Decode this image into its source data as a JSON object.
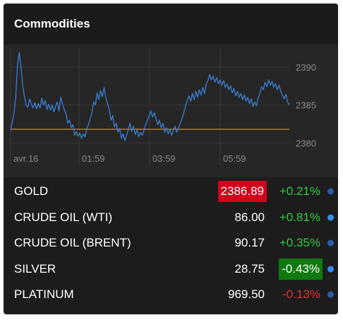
{
  "widget": {
    "title": "Commodities"
  },
  "chart_data": {
    "type": "line",
    "x_labels": [
      "avr.16",
      "01:59",
      "03:59",
      "05:59"
    ],
    "y_ticks": [
      2380,
      2385,
      2390
    ],
    "ylim": [
      2379.2,
      2392.4
    ],
    "baseline": 2381.8,
    "grid": true,
    "colors": {
      "line": "#3b7fd6",
      "baseline": "#b07a2b",
      "grid": "#3a3a3a",
      "axis_text": "#8a8a8a"
    },
    "y": [
      2381.6,
      2382.8,
      2384.0,
      2386.2,
      2390.3,
      2391.9,
      2390.0,
      2387.5,
      2386.1,
      2385.0,
      2384.7,
      2385.8,
      2385.1,
      2384.6,
      2385.3,
      2384.5,
      2385.2,
      2384.6,
      2385.9,
      2385.0,
      2385.6,
      2384.4,
      2385.1,
      2384.3,
      2385.0,
      2384.1,
      2384.8,
      2385.4,
      2384.2,
      2386.0,
      2385.1,
      2384.4,
      2383.8,
      2382.6,
      2383.0,
      2382.0,
      2382.4,
      2381.0,
      2381.5,
      2380.9,
      2381.3,
      2380.6,
      2381.2,
      2380.8,
      2381.9,
      2382.4,
      2383.2,
      2384.0,
      2385.4,
      2385.0,
      2386.6,
      2385.7,
      2386.9,
      2386.1,
      2387.3,
      2386.0,
      2385.2,
      2384.4,
      2383.0,
      2383.6,
      2382.1,
      2382.6,
      2381.4,
      2381.9,
      2380.6,
      2381.2,
      2380.3,
      2381.0,
      2381.8,
      2382.6,
      2381.5,
      2382.2,
      2381.1,
      2381.7,
      2380.8,
      2381.4,
      2381.0,
      2381.6,
      2382.4,
      2383.0,
      2383.6,
      2384.2,
      2383.4,
      2384.0,
      2383.2,
      2382.4,
      2383.0,
      2382.0,
      2382.6,
      2381.4,
      2382.0,
      2381.2,
      2381.8,
      2381.0,
      2381.6,
      2382.2,
      2381.4,
      2382.0,
      2382.6,
      2383.2,
      2384.0,
      2384.8,
      2385.6,
      2386.2,
      2385.5,
      2386.5,
      2385.7,
      2386.8,
      2386.0,
      2387.0,
      2386.3,
      2387.3,
      2386.5,
      2387.8,
      2388.2,
      2389.0,
      2388.3,
      2388.8,
      2388.0,
      2388.6,
      2387.8,
      2388.3,
      2387.6,
      2388.2,
      2387.3,
      2387.8,
      2387.0,
      2387.5,
      2386.6,
      2387.2,
      2386.2,
      2386.8,
      2386.0,
      2386.5,
      2385.7,
      2386.3,
      2385.5,
      2386.0,
      2385.2,
      2385.8,
      2384.8,
      2385.4,
      2384.9,
      2385.9,
      2386.6,
      2387.4,
      2387.0,
      2388.0,
      2387.4,
      2388.3,
      2387.6,
      2388.1,
      2387.3,
      2387.8,
      2387.0,
      2387.6,
      2386.8,
      2386.3,
      2385.8,
      2386.4,
      2385.4,
      2385.0
    ]
  },
  "quotes": [
    {
      "name": "GOLD",
      "price": "2386.89",
      "change": "+0.21%",
      "price_bg": "#d0021b",
      "change_bg": "",
      "change_color": "#2ecc40",
      "dot": "#2a5caa"
    },
    {
      "name": "CRUDE OIL (WTI)",
      "price": "86.00",
      "change": "+0.81%",
      "price_bg": "",
      "change_bg": "",
      "change_color": "#2ecc40",
      "dot": "#3a8cf0"
    },
    {
      "name": "CRUDE OIL (BRENT)",
      "price": "90.17",
      "change": "+0.35%",
      "price_bg": "",
      "change_bg": "",
      "change_color": "#2ecc40",
      "dot": "#2a5caa"
    },
    {
      "name": "SILVER",
      "price": "28.75",
      "change": "-0.43%",
      "price_bg": "",
      "change_bg": "#0f7a0f",
      "change_color": "#ffffff",
      "dot": "#3a8cf0"
    },
    {
      "name": "PLATINUM",
      "price": "969.50",
      "change": "-0.13%",
      "price_bg": "",
      "change_bg": "",
      "change_color": "#e0302a",
      "dot": "#2a5caa"
    }
  ]
}
